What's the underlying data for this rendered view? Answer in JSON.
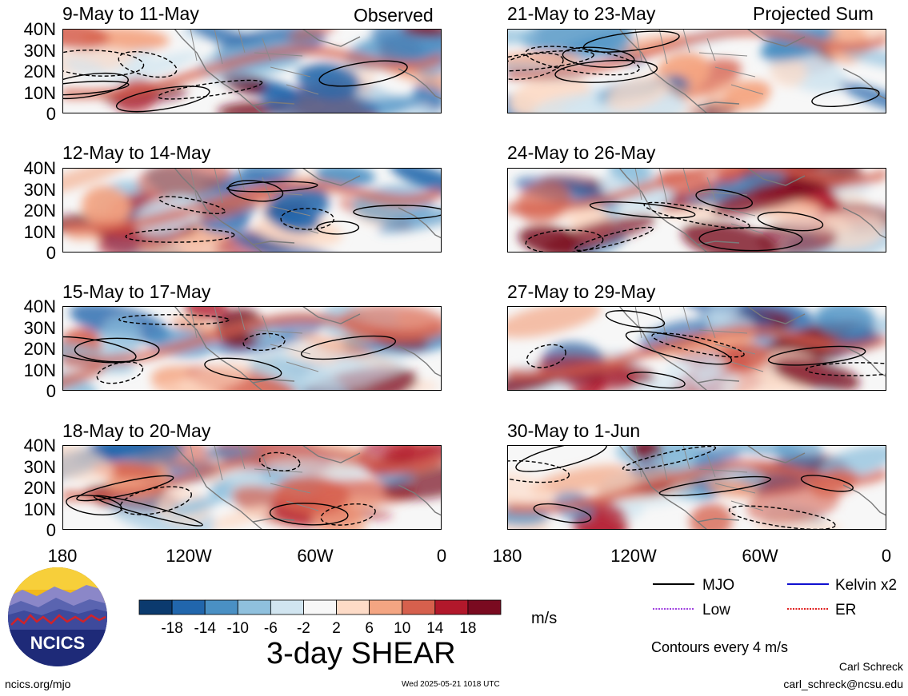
{
  "chart_data": {
    "type": "heatmap",
    "title": "3-day SHEAR",
    "units": "m/s",
    "left_header": "Observed",
    "right_header": "Projected Sum",
    "y_ticks": [
      "40N",
      "30N",
      "20N",
      "10N",
      "0"
    ],
    "x_ticks": [
      "180",
      "120W",
      "60W",
      "0"
    ],
    "ylim": [
      0,
      40
    ],
    "xlim": [
      -180,
      0
    ],
    "panels": [
      {
        "col": "left",
        "label": "9-May to 11-May"
      },
      {
        "col": "left",
        "label": "12-May to 14-May"
      },
      {
        "col": "left",
        "label": "15-May to 17-May"
      },
      {
        "col": "left",
        "label": "18-May to 20-May"
      },
      {
        "col": "right",
        "label": "21-May to 23-May"
      },
      {
        "col": "right",
        "label": "24-May to 26-May"
      },
      {
        "col": "right",
        "label": "27-May to 29-May"
      },
      {
        "col": "right",
        "label": "30-May to 1-Jun"
      }
    ],
    "colorbar": {
      "tick_labels": [
        "-18",
        "-14",
        "-10",
        "-6",
        "-2",
        "2",
        "6",
        "10",
        "14",
        "18"
      ],
      "colors": [
        "#0b3a6e",
        "#2166ac",
        "#4a90c4",
        "#8fc0dd",
        "#d1e5f0",
        "#f7f7f7",
        "#fddbc7",
        "#f4a582",
        "#d6604d",
        "#b2182b",
        "#7a0a20"
      ]
    },
    "legend": [
      {
        "label": "MJO",
        "color": "#000000",
        "dashed": false
      },
      {
        "label": "Kelvin x2",
        "color": "#1010d0",
        "dashed": false
      },
      {
        "label": "Low",
        "color": "#a040e0",
        "dashed": true
      },
      {
        "label": "ER",
        "color": "#e02020",
        "dashed": true
      }
    ],
    "contour_note": "Contours every 4 m/s"
  },
  "footer": {
    "url": "ncics.org/mjo",
    "timestamp": "Wed 2025-05-21 1018 UTC",
    "author": "Carl Schreck",
    "email": "carl_schreck@ncsu.edu"
  },
  "logo": {
    "text": "NCICS"
  }
}
